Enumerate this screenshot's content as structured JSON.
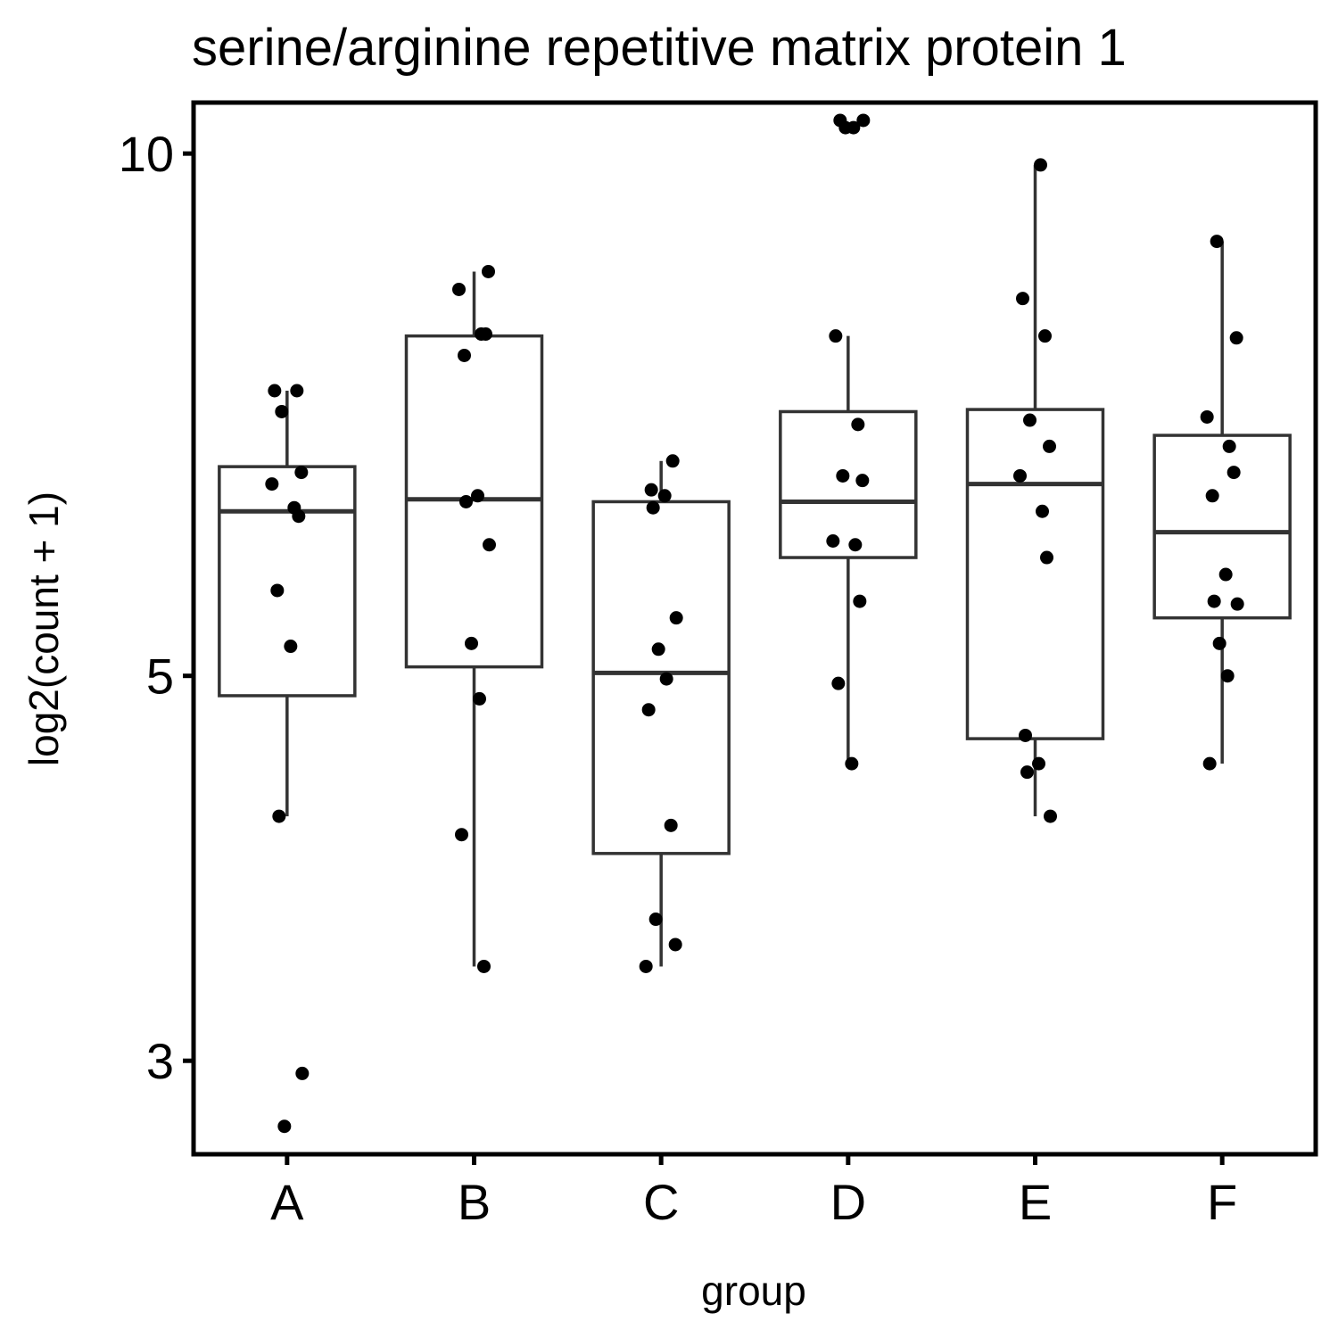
{
  "chart_data": {
    "type": "boxplot",
    "title": "serine/arginine repetitive matrix protein 1",
    "xlabel": "group",
    "ylabel": "log2(count + 1)",
    "y_scale": "log",
    "ylim": [
      2.65,
      10.7
    ],
    "y_ticks": [
      3,
      5,
      10
    ],
    "grid": false,
    "legend": "none",
    "categories": [
      "A",
      "B",
      "C",
      "D",
      "E",
      "F"
    ],
    "boxes": [
      {
        "group": "A",
        "lower_whisker": 4.15,
        "q1": 4.87,
        "median": 6.22,
        "q3": 6.6,
        "upper_whisker": 7.3
      },
      {
        "group": "B",
        "lower_whisker": 3.4,
        "q1": 5.06,
        "median": 6.32,
        "q3": 7.85,
        "upper_whisker": 8.55
      },
      {
        "group": "C",
        "lower_whisker": 3.4,
        "q1": 3.95,
        "median": 5.02,
        "q3": 6.3,
        "upper_whisker": 6.65
      },
      {
        "group": "D",
        "lower_whisker": 4.45,
        "q1": 5.85,
        "median": 6.3,
        "q3": 7.1,
        "upper_whisker": 7.85
      },
      {
        "group": "E",
        "lower_whisker": 4.15,
        "q1": 4.6,
        "median": 6.45,
        "q3": 7.12,
        "upper_whisker": 9.85
      },
      {
        "group": "F",
        "lower_whisker": 4.45,
        "q1": 5.4,
        "median": 6.05,
        "q3": 6.88,
        "upper_whisker": 8.9
      }
    ],
    "points": [
      {
        "group": "A",
        "y": [
          7.3,
          7.3,
          7.1,
          6.55,
          6.45,
          6.25,
          6.18,
          5.6,
          5.2,
          4.15,
          2.95,
          2.75
        ]
      },
      {
        "group": "B",
        "y": [
          8.55,
          8.35,
          7.87,
          7.87,
          7.65,
          6.35,
          6.3,
          5.95,
          5.22,
          4.85,
          4.05,
          3.4
        ]
      },
      {
        "group": "C",
        "y": [
          6.65,
          6.4,
          6.35,
          6.25,
          5.4,
          5.18,
          4.98,
          4.78,
          4.1,
          3.62,
          3.5,
          3.4
        ]
      },
      {
        "group": "D",
        "y": [
          10.45,
          10.45,
          10.35,
          10.35,
          7.85,
          6.98,
          6.52,
          6.48,
          5.98,
          5.95,
          5.52,
          4.95,
          4.45
        ]
      },
      {
        "group": "E",
        "y": [
          9.85,
          8.25,
          7.85,
          7.02,
          6.78,
          6.52,
          6.22,
          5.85,
          4.62,
          4.45,
          4.4,
          4.15
        ]
      },
      {
        "group": "F",
        "y": [
          8.9,
          7.83,
          7.05,
          6.78,
          6.55,
          6.35,
          5.72,
          5.52,
          5.5,
          5.22,
          5.0,
          4.45
        ]
      }
    ]
  }
}
